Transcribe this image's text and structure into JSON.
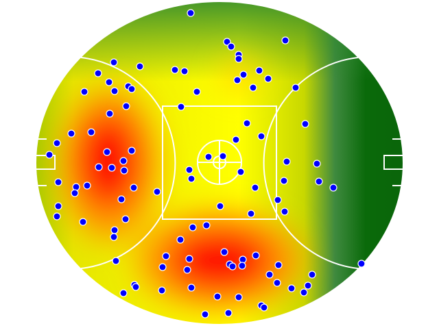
{
  "chart_data": {
    "type": "scatter",
    "color": "#0000ff",
    "xlim": [
      -320,
      320
    ],
    "ylim": [
      -238,
      238
    ],
    "x": [
      -42,
      11,
      17,
      28,
      28,
      96,
      -154,
      -116,
      -65,
      -51,
      -177,
      -161,
      -133,
      -128,
      -153,
      -197,
      35,
      58,
      71,
      26,
      49,
      111,
      -33,
      -56,
      -136,
      -160,
      40,
      125,
      -216,
      -187,
      61,
      24,
      -237,
      -248,
      -164,
      -128,
      -16,
      5,
      -140,
      -176,
      -157,
      -139,
      98,
      142,
      -44,
      31,
      -41,
      145,
      94,
      166,
      -235,
      -209,
      -193,
      -125,
      -211,
      -91,
      52,
      -143,
      85,
      1,
      -235,
      95,
      46,
      -237,
      -137,
      -199,
      -39,
      -19,
      -153,
      -154,
      -57,
      7,
      53,
      -78,
      -44,
      34,
      15,
      19,
      33,
      -151,
      -83,
      -47,
      86,
      73,
      135,
      207,
      84,
      129,
      -124,
      -122,
      -41,
      -84,
      -140,
      105,
      123,
      -3,
      28,
      61,
      65,
      -21,
      13
    ],
    "values": [
      219,
      177,
      170,
      158,
      152,
      179,
      147,
      141,
      136,
      134,
      131,
      118,
      112,
      108,
      105,
      104,
      129,
      135,
      123,
      121,
      110,
      110,
      104,
      82,
      83,
      72,
      58,
      57,
      43,
      45,
      39,
      34,
      29,
      12,
      16,
      18,
      9,
      10,
      3,
      -6,
      -7,
      -11,
      2,
      -1,
      -10,
      -13,
      -23,
      -27,
      -26,
      -36,
      -28,
      -35,
      -33,
      -36,
      -44,
      -42,
      -36,
      -53,
      -54,
      -63,
      -63,
      -71,
      -74,
      -78,
      -82,
      -86,
      -94,
      -91,
      -98,
      -108,
      -112,
      -130,
      -135,
      -136,
      -140,
      -141,
      -148,
      -151,
      -150,
      -143,
      -152,
      -156,
      -149,
      -163,
      -163,
      -147,
      -175,
      -179,
      -178,
      -181,
      -182,
      -186,
      -190,
      -183,
      -189,
      -195,
      -196,
      -208,
      -211,
      -221,
      -219
    ]
  }
}
